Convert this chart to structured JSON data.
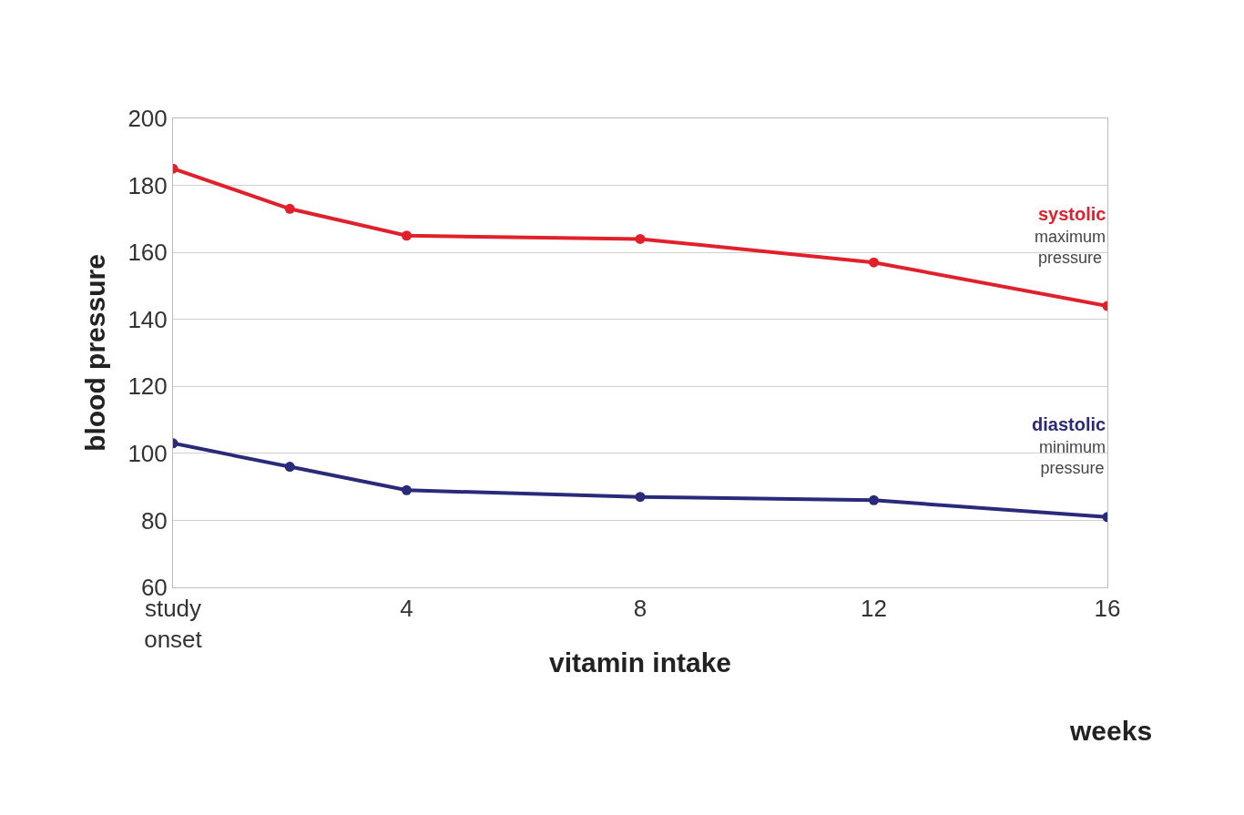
{
  "chart_data": {
    "type": "line",
    "ylabel": "blood pressure",
    "xlabel": "vitamin intake",
    "x": [
      0,
      2,
      4,
      8,
      12,
      16
    ],
    "series": [
      {
        "name": "systolic",
        "color": "#e0202a",
        "values": [
          185,
          173,
          165,
          164,
          157,
          144
        ]
      },
      {
        "name": "diastolic",
        "color": "#2a2a7a",
        "values": [
          103,
          96,
          89,
          87,
          86,
          81
        ]
      }
    ],
    "annotations": [
      "maximum pressure",
      "minimum pressure",
      "weeks"
    ],
    "xlim": [
      0,
      16
    ],
    "xticks": [
      {
        "value": 0,
        "label": "study onset"
      },
      4,
      8,
      12,
      16
    ],
    "ylim": [
      60,
      200
    ],
    "yticks": [
      60,
      80,
      100,
      120,
      140,
      160,
      180,
      200
    ],
    "grid": "y",
    "marker": "circle",
    "line_style": "solid"
  }
}
